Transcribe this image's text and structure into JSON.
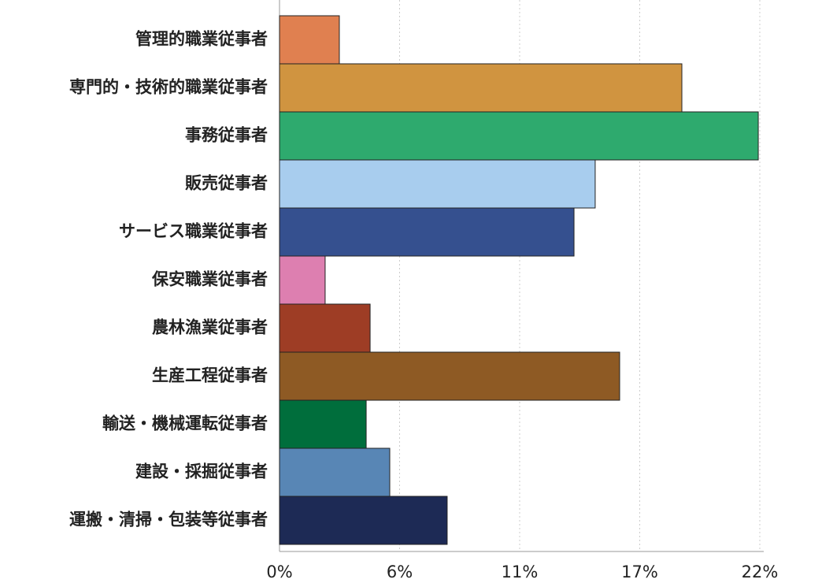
{
  "chart_data": {
    "type": "bar",
    "orientation": "horizontal",
    "categories": [
      "管理的職業従事者",
      "専門的・技術的職業従事者",
      "事務従事者",
      "販売従事者",
      "サービス職業従事者",
      "保安職業従事者",
      "農林漁業従事者",
      "生産工程従事者",
      "輸送・機械運転従事者",
      "建設・採掘従事者",
      "運搬・清掃・包装等従事者"
    ],
    "values": [
      2.74,
      18.43,
      21.93,
      14.46,
      13.49,
      2.09,
      4.15,
      15.58,
      3.97,
      5.05,
      7.68
    ],
    "colors": [
      "#e08050",
      "#d09440",
      "#2eaa6e",
      "#a8cdee",
      "#35508f",
      "#dd7fb0",
      "#9e3d25",
      "#8e5a24",
      "#006e3c",
      "#5886b5",
      "#1d2a55"
    ],
    "xlim": [
      0,
      22
    ],
    "xticks": [
      {
        "value": 0,
        "label": "0%"
      },
      {
        "value": 5.5,
        "label": "6%"
      },
      {
        "value": 11,
        "label": "11%"
      },
      {
        "value": 16.5,
        "label": "17%"
      },
      {
        "value": 22,
        "label": "22%"
      }
    ],
    "grid": true
  }
}
